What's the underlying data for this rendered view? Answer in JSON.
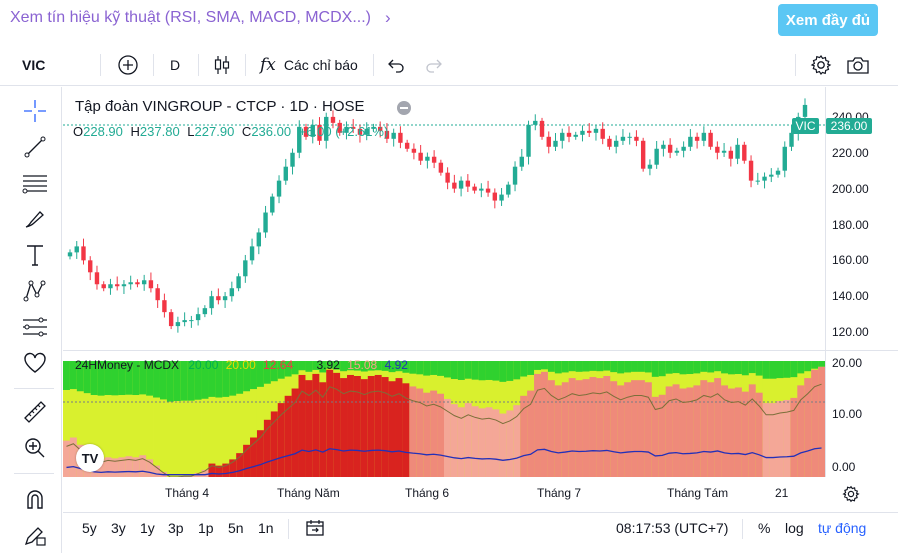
{
  "banner": {
    "link_text": "Xem tín hiệu kỹ thuật (RSI, SMA, MACD, MCDX...)",
    "full_button": "Xem đầy đủ"
  },
  "toolbar": {
    "symbol": "VIC",
    "interval": "D",
    "indicators_label": "Các chỉ báo"
  },
  "legend": {
    "title": "Tập đoàn VINGROUP - CTCP · 1D · HOSE",
    "o_label": "O",
    "o_value": "228.90",
    "h_label": "H",
    "h_value": "237.80",
    "l_label": "L",
    "l_value": "227.90",
    "c_label": "C",
    "c_value": "236.00",
    "change": "+6.00 (+2.61%)"
  },
  "price_tag": {
    "symbol": "VIC",
    "value": "236.00"
  },
  "price_axis": [
    "240.00",
    "220.00",
    "200.00",
    "180.00",
    "160.00",
    "140.00",
    "120.00"
  ],
  "indicator": {
    "name": "24HMoney - MCDX",
    "v1": "20.00",
    "v2": "20.00",
    "v3": "12.64",
    "v4": "3.92",
    "v5": "15.08",
    "v6": "4.92",
    "axis": [
      "20.00",
      "10.00",
      "0.00"
    ]
  },
  "time_axis": [
    "Tháng 4",
    "Tháng Năm",
    "Tháng 6",
    "Tháng 7",
    "Tháng Tám",
    "21"
  ],
  "ranges": [
    "5y",
    "3y",
    "1y",
    "3p",
    "1p",
    "5n",
    "1n"
  ],
  "bottom": {
    "time": "08:17:53 (UTC+7)",
    "percent": "%",
    "log": "log",
    "auto": "tự động"
  },
  "colors": {
    "up": "#22ab94",
    "down": "#f23645",
    "accent": "#2962ff",
    "brand": "#5bc7f4",
    "link": "#8a63d2"
  },
  "chart_data": {
    "type": "candlestick",
    "title": "Tập đoàn VINGROUP - CTCP · 1D · HOSE",
    "ylim": [
      113,
      245
    ],
    "ohlc_close_series": [
      162,
      165,
      158,
      152,
      146,
      144,
      146,
      145,
      146,
      147,
      146,
      148,
      144,
      138,
      132,
      125,
      127,
      128,
      128,
      131,
      134,
      140,
      138,
      140,
      144,
      150,
      158,
      165,
      172,
      182,
      190,
      198,
      205,
      212,
      225,
      220,
      226,
      218,
      230,
      227,
      222,
      225,
      224,
      221,
      224,
      225,
      223,
      219,
      222,
      217,
      214,
      212,
      208,
      210,
      207,
      202,
      197,
      194,
      198,
      195,
      193,
      194,
      192,
      188,
      191,
      196,
      205,
      210,
      226,
      228,
      220,
      215,
      218,
      222,
      220,
      221,
      223,
      222,
      224,
      219,
      215,
      218,
      220,
      220,
      218,
      204,
      206,
      214,
      216,
      212,
      213,
      215,
      220,
      218,
      222,
      215,
      212,
      213,
      209,
      216,
      208,
      198,
      198,
      200,
      201,
      203,
      215,
      222,
      230,
      236
    ]
  }
}
